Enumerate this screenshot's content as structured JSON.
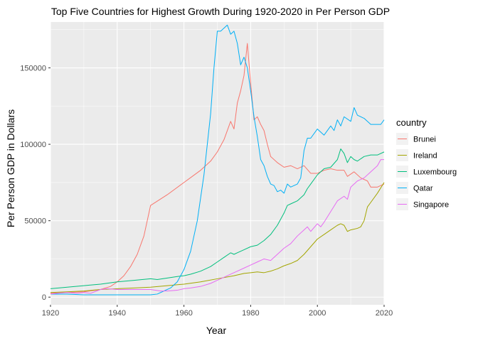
{
  "chart_data": {
    "type": "line",
    "title": "Top Five Countries for Highest Growth During 1920-2020 in Per Person GDP",
    "xlabel": "Year",
    "ylabel": "Per Person GDP in Dollars",
    "xlim": [
      1920,
      2020
    ],
    "ylim": [
      -5000,
      180000
    ],
    "x_ticks": [
      1920,
      1940,
      1960,
      1980,
      2000,
      2020
    ],
    "y_ticks": [
      0,
      50000,
      100000,
      150000
    ],
    "y_tick_labels": [
      "0",
      "50000",
      "100000",
      "150000"
    ],
    "x_tick_labels": [
      "1920",
      "1940",
      "1960",
      "1980",
      "2000",
      "2020"
    ],
    "grid": true,
    "legend_title": "country",
    "legend_position": "right",
    "series": [
      {
        "name": "Brunei",
        "color": "#F8766D",
        "points": [
          [
            1920,
            2500
          ],
          [
            1925,
            3000
          ],
          [
            1930,
            3500
          ],
          [
            1935,
            5000
          ],
          [
            1938,
            7000
          ],
          [
            1940,
            10000
          ],
          [
            1942,
            14000
          ],
          [
            1944,
            20000
          ],
          [
            1946,
            28000
          ],
          [
            1948,
            40000
          ],
          [
            1950,
            60000
          ],
          [
            1955,
            67000
          ],
          [
            1960,
            75000
          ],
          [
            1965,
            83000
          ],
          [
            1968,
            89000
          ],
          [
            1970,
            95000
          ],
          [
            1972,
            103000
          ],
          [
            1974,
            115000
          ],
          [
            1975,
            110000
          ],
          [
            1976,
            127000
          ],
          [
            1977,
            135000
          ],
          [
            1978,
            145000
          ],
          [
            1979,
            166000
          ],
          [
            1980,
            140000
          ],
          [
            1981,
            116000
          ],
          [
            1982,
            118000
          ],
          [
            1983,
            113000
          ],
          [
            1984,
            109000
          ],
          [
            1985,
            100000
          ],
          [
            1986,
            92000
          ],
          [
            1988,
            88000
          ],
          [
            1990,
            85000
          ],
          [
            1992,
            86000
          ],
          [
            1994,
            84000
          ],
          [
            1996,
            86000
          ],
          [
            1998,
            81000
          ],
          [
            2000,
            81000
          ],
          [
            2002,
            83000
          ],
          [
            2004,
            84000
          ],
          [
            2006,
            83000
          ],
          [
            2008,
            83000
          ],
          [
            2009,
            79000
          ],
          [
            2011,
            82000
          ],
          [
            2013,
            78000
          ],
          [
            2015,
            76000
          ],
          [
            2016,
            72000
          ],
          [
            2018,
            72000
          ],
          [
            2020,
            74000
          ]
        ]
      },
      {
        "name": "Ireland",
        "color": "#A3A500",
        "points": [
          [
            1920,
            3000
          ],
          [
            1925,
            3500
          ],
          [
            1930,
            4000
          ],
          [
            1935,
            5000
          ],
          [
            1940,
            5500
          ],
          [
            1945,
            6000
          ],
          [
            1950,
            6500
          ],
          [
            1955,
            7500
          ],
          [
            1960,
            8500
          ],
          [
            1965,
            10000
          ],
          [
            1970,
            12000
          ],
          [
            1975,
            14000
          ],
          [
            1978,
            15500
          ],
          [
            1980,
            16000
          ],
          [
            1982,
            16500
          ],
          [
            1984,
            16000
          ],
          [
            1986,
            17000
          ],
          [
            1988,
            18500
          ],
          [
            1990,
            20500
          ],
          [
            1992,
            22000
          ],
          [
            1994,
            24000
          ],
          [
            1996,
            28000
          ],
          [
            1998,
            33000
          ],
          [
            2000,
            38000
          ],
          [
            2002,
            41000
          ],
          [
            2004,
            44000
          ],
          [
            2006,
            47000
          ],
          [
            2007,
            48000
          ],
          [
            2008,
            47000
          ],
          [
            2009,
            43000
          ],
          [
            2010,
            44000
          ],
          [
            2012,
            45000
          ],
          [
            2013,
            46000
          ],
          [
            2014,
            50000
          ],
          [
            2015,
            59000
          ],
          [
            2016,
            62000
          ],
          [
            2018,
            68000
          ],
          [
            2020,
            75000
          ]
        ]
      },
      {
        "name": "Luxembourg",
        "color": "#00BF7D",
        "points": [
          [
            1920,
            5500
          ],
          [
            1925,
            6500
          ],
          [
            1930,
            7500
          ],
          [
            1935,
            8500
          ],
          [
            1940,
            10000
          ],
          [
            1945,
            11000
          ],
          [
            1950,
            12000
          ],
          [
            1952,
            11500
          ],
          [
            1955,
            12500
          ],
          [
            1958,
            13500
          ],
          [
            1960,
            14000
          ],
          [
            1962,
            15000
          ],
          [
            1965,
            17000
          ],
          [
            1968,
            20000
          ],
          [
            1970,
            23000
          ],
          [
            1972,
            26000
          ],
          [
            1974,
            29000
          ],
          [
            1975,
            28000
          ],
          [
            1976,
            29000
          ],
          [
            1978,
            31000
          ],
          [
            1980,
            33000
          ],
          [
            1982,
            34000
          ],
          [
            1984,
            37000
          ],
          [
            1986,
            41000
          ],
          [
            1988,
            47000
          ],
          [
            1990,
            55000
          ],
          [
            1991,
            60000
          ],
          [
            1992,
            61000
          ],
          [
            1994,
            63000
          ],
          [
            1996,
            67000
          ],
          [
            1997,
            71000
          ],
          [
            1998,
            74000
          ],
          [
            2000,
            80000
          ],
          [
            2002,
            84000
          ],
          [
            2004,
            85000
          ],
          [
            2006,
            90000
          ],
          [
            2007,
            97000
          ],
          [
            2008,
            94000
          ],
          [
            2009,
            88000
          ],
          [
            2010,
            92000
          ],
          [
            2011,
            90000
          ],
          [
            2012,
            89000
          ],
          [
            2014,
            92000
          ],
          [
            2016,
            93000
          ],
          [
            2018,
            93000
          ],
          [
            2020,
            95000
          ]
        ]
      },
      {
        "name": "Qatar",
        "color": "#00B0F6",
        "points": [
          [
            1920,
            2000
          ],
          [
            1925,
            2000
          ],
          [
            1930,
            1500
          ],
          [
            1935,
            1500
          ],
          [
            1940,
            1500
          ],
          [
            1945,
            1500
          ],
          [
            1950,
            1500
          ],
          [
            1952,
            2000
          ],
          [
            1954,
            4000
          ],
          [
            1956,
            6000
          ],
          [
            1958,
            10000
          ],
          [
            1960,
            18000
          ],
          [
            1962,
            30000
          ],
          [
            1964,
            50000
          ],
          [
            1966,
            80000
          ],
          [
            1968,
            120000
          ],
          [
            1969,
            150000
          ],
          [
            1970,
            174000
          ],
          [
            1971,
            174000
          ],
          [
            1972,
            176000
          ],
          [
            1973,
            178000
          ],
          [
            1974,
            172000
          ],
          [
            1975,
            174000
          ],
          [
            1976,
            166000
          ],
          [
            1977,
            152000
          ],
          [
            1978,
            157000
          ],
          [
            1979,
            150000
          ],
          [
            1980,
            135000
          ],
          [
            1981,
            118000
          ],
          [
            1982,
            105000
          ],
          [
            1983,
            90000
          ],
          [
            1984,
            86000
          ],
          [
            1985,
            79000
          ],
          [
            1986,
            74000
          ],
          [
            1987,
            73000
          ],
          [
            1988,
            69000
          ],
          [
            1989,
            70000
          ],
          [
            1990,
            68000
          ],
          [
            1991,
            74000
          ],
          [
            1992,
            72000
          ],
          [
            1994,
            74000
          ],
          [
            1995,
            78000
          ],
          [
            1996,
            96000
          ],
          [
            1997,
            104000
          ],
          [
            1998,
            104000
          ],
          [
            2000,
            110000
          ],
          [
            2002,
            106000
          ],
          [
            2004,
            112000
          ],
          [
            2005,
            109000
          ],
          [
            2006,
            116000
          ],
          [
            2007,
            112000
          ],
          [
            2008,
            118000
          ],
          [
            2010,
            115000
          ],
          [
            2011,
            124000
          ],
          [
            2012,
            119000
          ],
          [
            2014,
            117000
          ],
          [
            2016,
            113000
          ],
          [
            2018,
            113000
          ],
          [
            2019,
            113000
          ],
          [
            2020,
            116000
          ]
        ]
      },
      {
        "name": "Singapore",
        "color": "#E76BF3",
        "points": [
          [
            1920,
            2000
          ],
          [
            1922,
            2500
          ],
          [
            1925,
            3000
          ],
          [
            1928,
            2500
          ],
          [
            1930,
            3000
          ],
          [
            1932,
            2500
          ],
          [
            1935,
            5000
          ],
          [
            1937,
            5500
          ],
          [
            1940,
            5000
          ],
          [
            1945,
            5000
          ],
          [
            1950,
            5000
          ],
          [
            1953,
            4000
          ],
          [
            1955,
            4000
          ],
          [
            1958,
            4500
          ],
          [
            1960,
            5500
          ],
          [
            1962,
            6000
          ],
          [
            1965,
            7000
          ],
          [
            1968,
            9000
          ],
          [
            1970,
            11000
          ],
          [
            1972,
            13000
          ],
          [
            1974,
            15000
          ],
          [
            1976,
            17000
          ],
          [
            1978,
            19000
          ],
          [
            1980,
            21000
          ],
          [
            1982,
            23000
          ],
          [
            1984,
            25000
          ],
          [
            1986,
            24000
          ],
          [
            1988,
            28000
          ],
          [
            1990,
            32000
          ],
          [
            1992,
            35000
          ],
          [
            1994,
            40000
          ],
          [
            1996,
            44000
          ],
          [
            1997,
            46000
          ],
          [
            1998,
            43000
          ],
          [
            2000,
            48000
          ],
          [
            2001,
            46000
          ],
          [
            2002,
            49000
          ],
          [
            2004,
            56000
          ],
          [
            2006,
            63000
          ],
          [
            2008,
            66000
          ],
          [
            2009,
            64000
          ],
          [
            2010,
            72000
          ],
          [
            2012,
            76000
          ],
          [
            2014,
            78000
          ],
          [
            2016,
            82000
          ],
          [
            2018,
            86000
          ],
          [
            2019,
            90000
          ],
          [
            2020,
            90000
          ]
        ]
      }
    ]
  }
}
